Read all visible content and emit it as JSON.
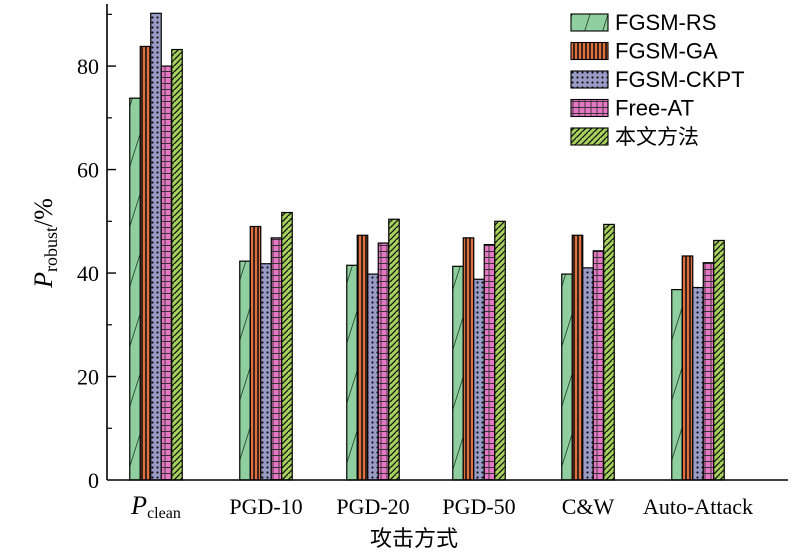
{
  "chart_data": {
    "type": "bar",
    "categories": [
      "Pclean",
      "PGD-10",
      "PGD-20",
      "PGD-50",
      "C&W",
      "Auto-Attack"
    ],
    "category_display": [
      {
        "main": "P",
        "sub": "clean"
      },
      {
        "main": "PGD-10",
        "sub": ""
      },
      {
        "main": "PGD-20",
        "sub": ""
      },
      {
        "main": "PGD-50",
        "sub": ""
      },
      {
        "main": "C&W",
        "sub": ""
      },
      {
        "main": "Auto-Attack",
        "sub": ""
      }
    ],
    "series": [
      {
        "name": "FGSM-RS",
        "values": [
          73.8,
          42.3,
          41.5,
          41.3,
          39.8,
          36.8
        ],
        "color": "#8fcf9f",
        "pattern": "diagonal"
      },
      {
        "name": "FGSM-GA",
        "values": [
          83.8,
          49.0,
          47.3,
          46.8,
          47.3,
          43.3
        ],
        "color": "#e0703e",
        "pattern": "vertical"
      },
      {
        "name": "FGSM-CKPT",
        "values": [
          90.2,
          41.8,
          39.8,
          38.8,
          41.0,
          37.2
        ],
        "color": "#9a9cc8",
        "pattern": "dots"
      },
      {
        "name": "Free-AT",
        "values": [
          80.0,
          46.8,
          45.8,
          45.5,
          44.3,
          42.0
        ],
        "color": "#e677c4",
        "pattern": "grid"
      },
      {
        "name": "本文方法",
        "values": [
          83.2,
          51.7,
          50.4,
          50.0,
          49.4,
          46.3
        ],
        "color": "#a6d15c",
        "pattern": "stripes"
      }
    ],
    "title": "",
    "xlabel": "攻击方式",
    "ylabel": {
      "main": "P",
      "sub": "robust",
      "suffix": "/%"
    },
    "ylim": [
      0,
      92
    ],
    "yticks": [
      0,
      20,
      40,
      60,
      80
    ],
    "grid": false,
    "legend_position": "top-right"
  }
}
